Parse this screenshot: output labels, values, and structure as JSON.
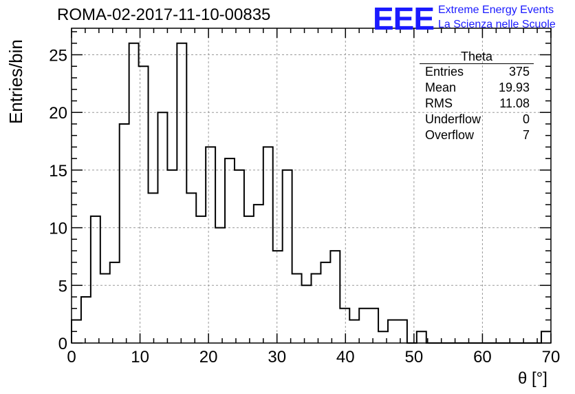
{
  "header": {
    "title": "ROMA-02-2017-11-10-00835",
    "logo": "EEE",
    "logo_line1": "Extreme Energy Events",
    "logo_line2": "La Scienza nelle Scuole"
  },
  "stats_box": {
    "name": "Theta",
    "rows": [
      {
        "label": "Entries",
        "value": "375"
      },
      {
        "label": "Mean",
        "value": "19.93"
      },
      {
        "label": "RMS",
        "value": "11.08"
      },
      {
        "label": "Underflow",
        "value": "0"
      },
      {
        "label": "Overflow",
        "value": "7"
      }
    ]
  },
  "chart_data": {
    "type": "bar",
    "style": "step-histogram",
    "bin_width": 1.4,
    "x_start": 0,
    "values": [
      2,
      4,
      11,
      6,
      7,
      19,
      26,
      24,
      13,
      20,
      15,
      26,
      13,
      11,
      17,
      10,
      16,
      15,
      11,
      12,
      17,
      8,
      15,
      6,
      5,
      6,
      7,
      8,
      3,
      2,
      3,
      3,
      1,
      2,
      2,
      0,
      1,
      0,
      0,
      0,
      0,
      0,
      0,
      0,
      0,
      0,
      0,
      0,
      0,
      1
    ],
    "xlabel": "θ [°]",
    "ylabel": "Entries/bin",
    "xlim": [
      0,
      70
    ],
    "ylim": [
      0,
      27.3
    ],
    "x_ticks": [
      "0",
      "10",
      "20",
      "30",
      "40",
      "50",
      "60",
      "70"
    ],
    "y_ticks": [
      "0",
      "5",
      "10",
      "15",
      "20",
      "25"
    ],
    "grid": true,
    "line_color": "#000000",
    "grid_color": "#999999"
  }
}
